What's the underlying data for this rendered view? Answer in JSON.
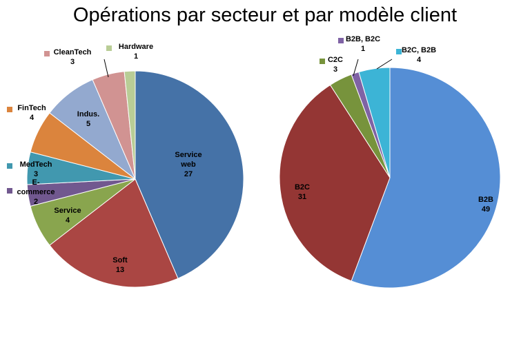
{
  "title": "Opérations par secteur et par modèle client",
  "chart_data": [
    {
      "type": "pie",
      "categories": [
        "Service web",
        "Soft",
        "Service",
        "E-commerce",
        "MedTech",
        "FinTech",
        "Indus.",
        "CleanTech",
        "Hardware"
      ],
      "values": [
        27,
        13,
        4,
        2,
        3,
        4,
        5,
        3,
        1
      ],
      "labels": [
        {
          "name": [
            "Service",
            "web"
          ],
          "value": "27"
        },
        {
          "name": [
            "Soft"
          ],
          "value": "13"
        },
        {
          "name": [
            "Service"
          ],
          "value": "4"
        },
        {
          "name": [
            "E-",
            "commerce"
          ],
          "value": "2"
        },
        {
          "name": [
            "MedTech"
          ],
          "value": "3"
        },
        {
          "name": [
            "FinTech"
          ],
          "value": "4"
        },
        {
          "name": [
            "Indus."
          ],
          "value": "5"
        },
        {
          "name": [
            "CleanTech"
          ],
          "value": "3"
        },
        {
          "name": [
            "Hardware"
          ],
          "value": "1"
        }
      ],
      "colors": [
        "#4572A7",
        "#AA4643",
        "#89A54E",
        "#71588F",
        "#4198AF",
        "#DB843D",
        "#93A9CF",
        "#D19392",
        "#B9CD96"
      ]
    },
    {
      "type": "pie",
      "categories": [
        "B2B",
        "B2C",
        "C2C",
        "B2B, B2C",
        "B2C, B2B"
      ],
      "values": [
        49,
        31,
        3,
        1,
        4
      ],
      "labels": [
        {
          "name": [
            "B2B"
          ],
          "value": "49"
        },
        {
          "name": [
            "B2C"
          ],
          "value": "31"
        },
        {
          "name": [
            "C2C"
          ],
          "value": "3"
        },
        {
          "name": [
            "B2B, B2C"
          ],
          "value": "1"
        },
        {
          "name": [
            "B2C, B2B"
          ],
          "value": "4"
        }
      ],
      "colors": [
        "#558ED5",
        "#943634",
        "#77933C",
        "#7F63A5",
        "#3CB4D6"
      ]
    }
  ]
}
